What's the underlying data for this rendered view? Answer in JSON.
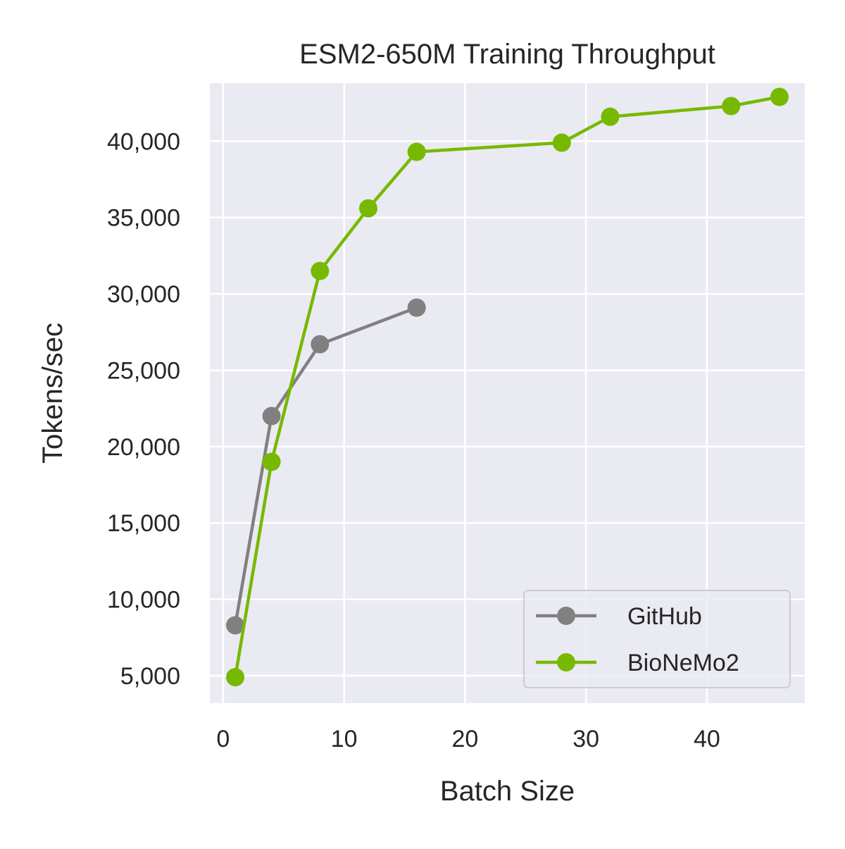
{
  "chart_data": {
    "type": "line",
    "title": "ESM2-650M Training Throughput",
    "xlabel": "Batch Size",
    "ylabel": "Tokens/sec",
    "xlim": [
      -1.1,
      48.1
    ],
    "ylim": [
      3200,
      43800
    ],
    "xticks": [
      0,
      10,
      20,
      30,
      40
    ],
    "xtick_labels": [
      "0",
      "10",
      "20",
      "30",
      "40"
    ],
    "yticks": [
      5000,
      10000,
      15000,
      20000,
      25000,
      30000,
      35000,
      40000
    ],
    "ytick_labels": [
      "5,000",
      "10,000",
      "15,000",
      "20,000",
      "25,000",
      "30,000",
      "35,000",
      "40,000"
    ],
    "grid": true,
    "background": "#eaeaf2",
    "legend_position": "lower-right",
    "series": [
      {
        "name": "GitHub",
        "color": "#808080",
        "x": [
          1,
          4,
          8,
          16
        ],
        "y": [
          8300,
          22000,
          26700,
          29100
        ]
      },
      {
        "name": "BioNeMo2",
        "color": "#76b900",
        "x": [
          1,
          4,
          8,
          12,
          16,
          28,
          32,
          42,
          46
        ],
        "y": [
          4900,
          19000,
          31500,
          35600,
          39300,
          39900,
          41600,
          42300,
          42900
        ]
      }
    ]
  }
}
